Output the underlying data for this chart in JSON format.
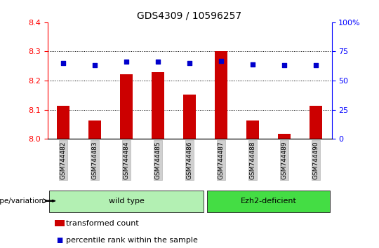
{
  "title": "GDS4309 / 10596257",
  "samples": [
    "GSM744482",
    "GSM744483",
    "GSM744484",
    "GSM744485",
    "GSM744486",
    "GSM744487",
    "GSM744488",
    "GSM744489",
    "GSM744490"
  ],
  "bar_values": [
    8.113,
    8.063,
    8.222,
    8.228,
    8.152,
    8.302,
    8.063,
    8.018,
    8.113
  ],
  "dot_values": [
    65,
    63,
    66,
    66,
    65,
    67,
    64,
    63,
    63
  ],
  "ylim_left": [
    8.0,
    8.4
  ],
  "ylim_right": [
    0,
    100
  ],
  "yticks_left": [
    8.0,
    8.1,
    8.2,
    8.3,
    8.4
  ],
  "yticks_right": [
    0,
    25,
    50,
    75,
    100
  ],
  "bar_color": "#cc0000",
  "dot_color": "#0000cc",
  "groups": [
    {
      "label": "wild type",
      "start": 0,
      "end": 5,
      "color": "#b3f0b3"
    },
    {
      "label": "Ezh2-deficient",
      "start": 5,
      "end": 9,
      "color": "#44dd44"
    }
  ],
  "group_label": "genotype/variation",
  "legend_bar_label": "transformed count",
  "legend_dot_label": "percentile rank within the sample",
  "tick_bg": "#d0d0d0",
  "dotted_lines_at": [
    8.1,
    8.2,
    8.3
  ],
  "bar_base": 8.0,
  "n_samples": 9
}
